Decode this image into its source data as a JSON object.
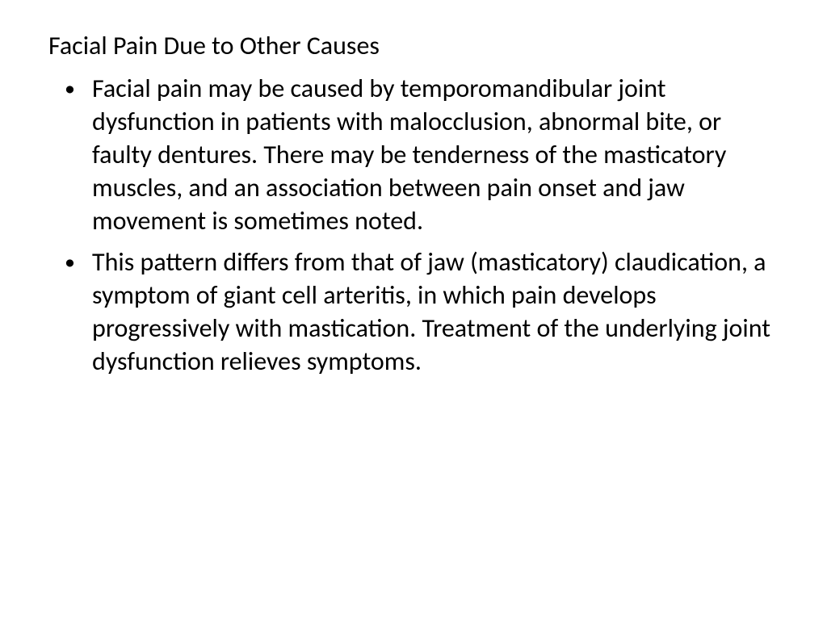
{
  "slide": {
    "title": "Facial Pain Due to Other Causes",
    "bullets": [
      "Facial pain may be caused by temporomandibular joint dysfunction in patients with malocclusion, abnormal bite, or faulty dentures. There may be tenderness of the masticatory muscles, and an association between pain onset and jaw movement is sometimes noted.",
      " This pattern differs from that of jaw (masticatory) claudication, a symptom of giant cell arteritis, in which pain develops progressively with mastication. Treatment of the underlying joint dysfunction relieves symptoms."
    ]
  },
  "styles": {
    "background_color": "#ffffff",
    "text_color": "#000000",
    "title_fontsize": 32,
    "body_fontsize": 32,
    "font_family": "Calibri",
    "line_height": 1.28
  }
}
